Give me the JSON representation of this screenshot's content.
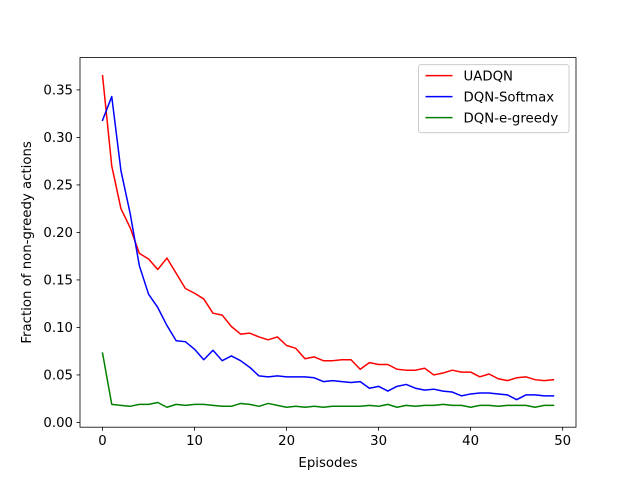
{
  "chart_data": {
    "type": "line",
    "title": "",
    "xlabel": "Episodes",
    "ylabel": "Fraction of non-greedy actions",
    "xlim": [
      -2.45,
      51.45
    ],
    "ylim": [
      -0.005,
      0.384
    ],
    "xticks": [
      0,
      10,
      20,
      30,
      40,
      50
    ],
    "yticks": [
      0.0,
      0.05,
      0.1,
      0.15,
      0.2,
      0.25,
      0.3,
      0.35
    ],
    "xtick_labels": [
      "0",
      "10",
      "20",
      "30",
      "40",
      "50"
    ],
    "ytick_labels": [
      "0.00",
      "0.05",
      "0.10",
      "0.15",
      "0.20",
      "0.25",
      "0.30",
      "0.35"
    ],
    "grid": false,
    "legend_position": "top-right",
    "x": [
      0,
      1,
      2,
      3,
      4,
      5,
      6,
      7,
      8,
      9,
      10,
      11,
      12,
      13,
      14,
      15,
      16,
      17,
      18,
      19,
      20,
      21,
      22,
      23,
      24,
      25,
      26,
      27,
      28,
      29,
      30,
      31,
      32,
      33,
      34,
      35,
      36,
      37,
      38,
      39,
      40,
      41,
      42,
      43,
      44,
      45,
      46,
      47,
      48,
      49
    ],
    "series": [
      {
        "name": "UADQN",
        "color": "#ff0000",
        "values": [
          0.365,
          0.27,
          0.225,
          0.205,
          0.178,
          0.172,
          0.161,
          0.173,
          0.157,
          0.141,
          0.136,
          0.13,
          0.115,
          0.113,
          0.101,
          0.093,
          0.094,
          0.09,
          0.087,
          0.09,
          0.081,
          0.078,
          0.067,
          0.069,
          0.065,
          0.065,
          0.066,
          0.066,
          0.056,
          0.063,
          0.061,
          0.061,
          0.056,
          0.055,
          0.055,
          0.057,
          0.05,
          0.052,
          0.055,
          0.053,
          0.053,
          0.048,
          0.051,
          0.046,
          0.044,
          0.047,
          0.048,
          0.045,
          0.044,
          0.045
        ]
      },
      {
        "name": "DQN-Softmax",
        "color": "#0000ff",
        "values": [
          0.318,
          0.343,
          0.265,
          0.22,
          0.165,
          0.135,
          0.121,
          0.102,
          0.086,
          0.085,
          0.077,
          0.066,
          0.076,
          0.065,
          0.07,
          0.065,
          0.058,
          0.049,
          0.048,
          0.049,
          0.048,
          0.048,
          0.048,
          0.047,
          0.043,
          0.044,
          0.043,
          0.042,
          0.043,
          0.036,
          0.038,
          0.033,
          0.038,
          0.04,
          0.036,
          0.034,
          0.035,
          0.033,
          0.032,
          0.028,
          0.03,
          0.031,
          0.031,
          0.03,
          0.029,
          0.024,
          0.029,
          0.029,
          0.028,
          0.028
        ]
      },
      {
        "name": "DQN-e-greedy",
        "color": "#008000",
        "values": [
          0.073,
          0.019,
          0.018,
          0.017,
          0.019,
          0.019,
          0.021,
          0.016,
          0.019,
          0.018,
          0.019,
          0.019,
          0.018,
          0.017,
          0.017,
          0.02,
          0.019,
          0.017,
          0.02,
          0.018,
          0.016,
          0.017,
          0.016,
          0.017,
          0.016,
          0.017,
          0.017,
          0.017,
          0.017,
          0.018,
          0.017,
          0.019,
          0.016,
          0.018,
          0.017,
          0.018,
          0.018,
          0.019,
          0.018,
          0.018,
          0.016,
          0.018,
          0.018,
          0.017,
          0.018,
          0.018,
          0.018,
          0.016,
          0.018,
          0.018
        ]
      }
    ]
  }
}
